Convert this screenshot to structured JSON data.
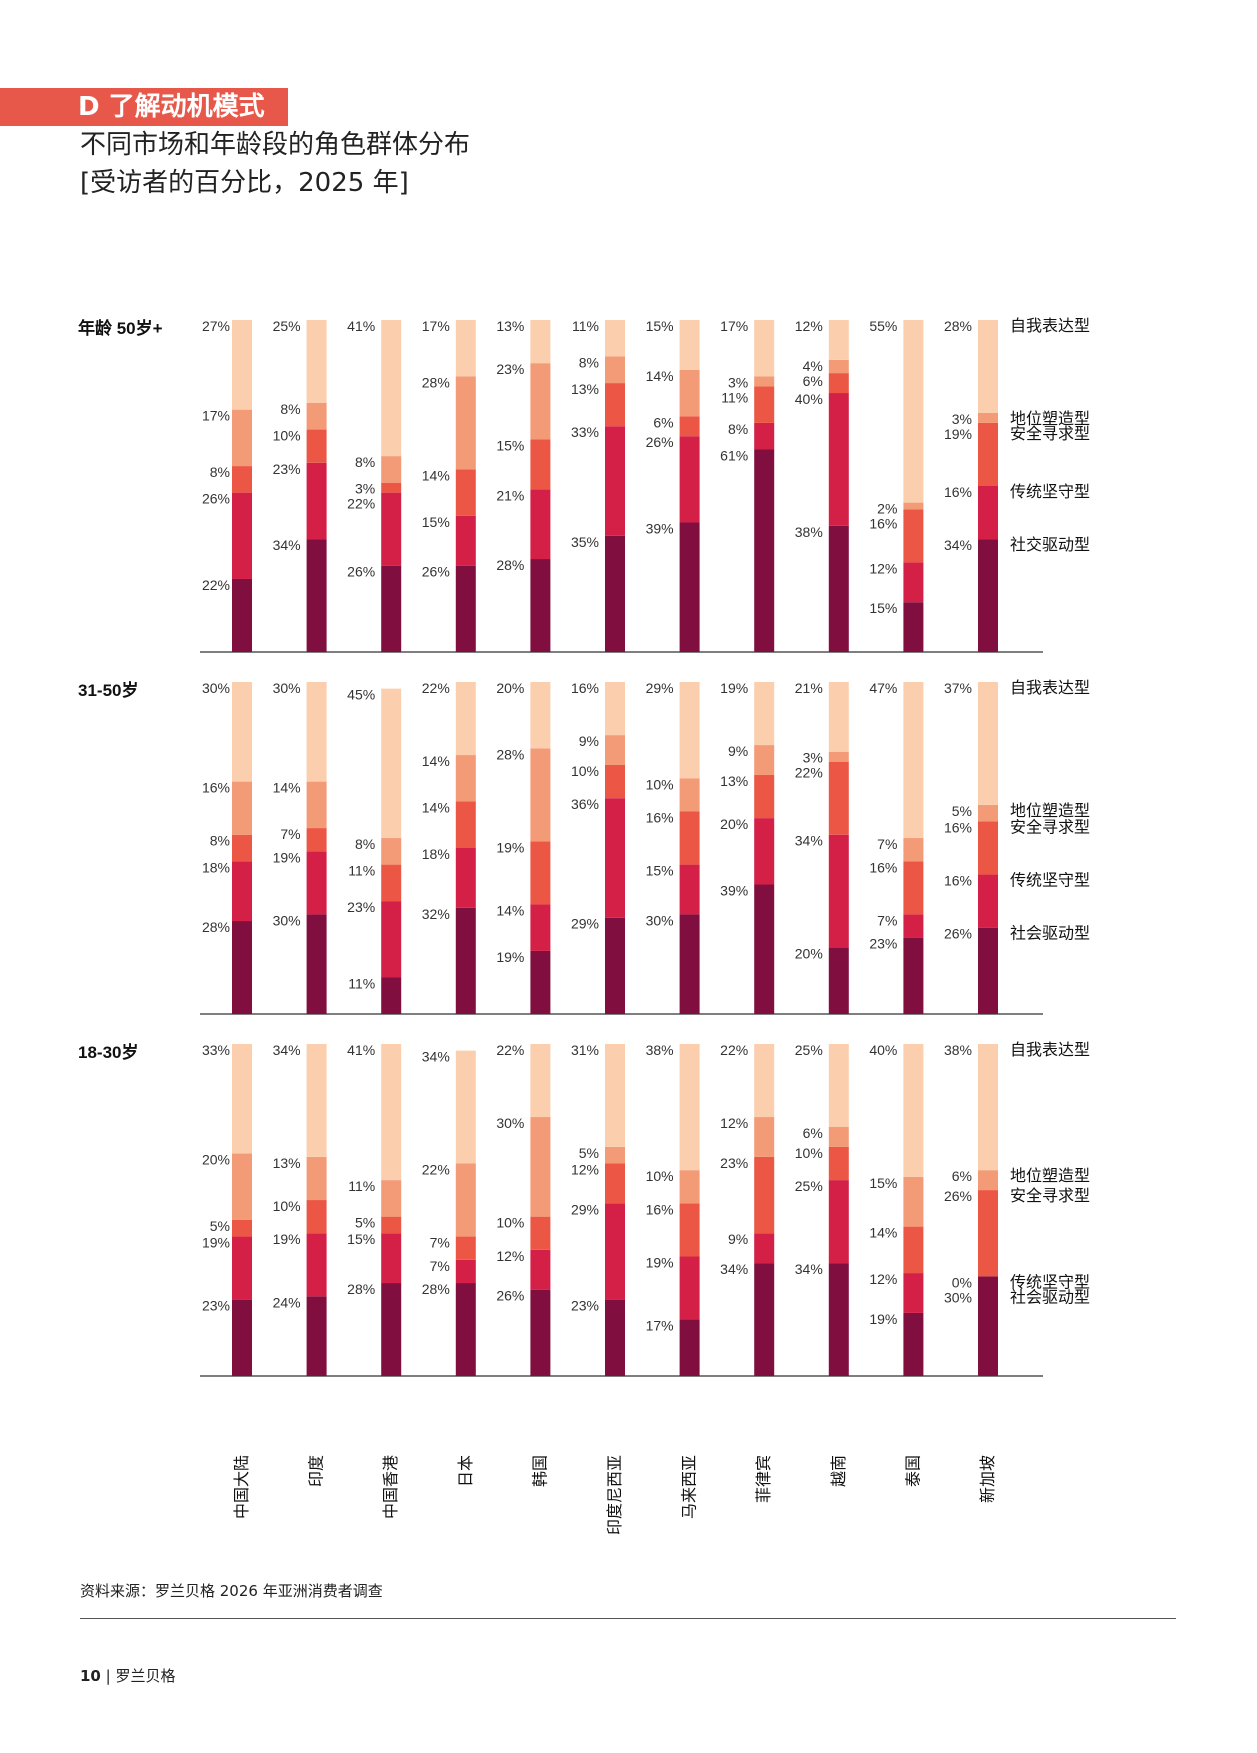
{
  "header": {
    "section_tag": "D 了解动机模式",
    "title": "不同市场和年龄段的角色群体分布",
    "subtitle": "[受访者的百分比，2025 年]"
  },
  "footer": {
    "source": "资料来源：罗兰贝格 2026 年亚洲消费者调查",
    "page_number": "10",
    "publisher": "罗兰贝格"
  },
  "colors": {
    "self_expression": "#fbcfae",
    "status_shaping": "#f39a77",
    "security_seeking": "#ec5745",
    "traditional": "#d41f47",
    "social_driven": "#800e3e"
  },
  "chart_data": {
    "type": "bar",
    "stacked": true,
    "unit": "%",
    "categories": [
      "中国大陆",
      "印度",
      "中国香港",
      "日本",
      "韩国",
      "印度尼西亚",
      "马来西亚",
      "菲律宾",
      "越南",
      "泰国",
      "新加坡"
    ],
    "series_order_bottom_to_top": [
      "社交驱动型",
      "传统坚守型",
      "安全寻求型",
      "地位塑造型",
      "自我表达型"
    ],
    "panels": [
      {
        "age_label": "年龄 50岁+",
        "legend": [
          "自我表达型",
          "地位塑造型",
          "安全寻求型",
          "传统坚守型",
          "社交驱动型"
        ],
        "stacks": [
          [
            22,
            26,
            8,
            17,
            27
          ],
          [
            34,
            23,
            10,
            8,
            25
          ],
          [
            26,
            22,
            3,
            8,
            41
          ],
          [
            26,
            15,
            14,
            28,
            17
          ],
          [
            28,
            21,
            15,
            23,
            13
          ],
          [
            35,
            33,
            13,
            8,
            11
          ],
          [
            39,
            26,
            6,
            14,
            15
          ],
          [
            61,
            8,
            11,
            3,
            17
          ],
          [
            38,
            40,
            6,
            4,
            12
          ],
          [
            15,
            12,
            16,
            2,
            55
          ],
          [
            34,
            16,
            19,
            3,
            28
          ]
        ]
      },
      {
        "age_label": "31-50岁",
        "legend": [
          "自我表达型",
          "地位塑造型",
          "安全寻求型",
          "传统坚守型",
          "社会驱动型"
        ],
        "stacks": [
          [
            28,
            18,
            8,
            16,
            30
          ],
          [
            30,
            19,
            7,
            14,
            30
          ],
          [
            11,
            23,
            11,
            8,
            45
          ],
          [
            32,
            18,
            14,
            14,
            22
          ],
          [
            19,
            14,
            19,
            28,
            20
          ],
          [
            29,
            36,
            10,
            9,
            16
          ],
          [
            30,
            15,
            16,
            10,
            29
          ],
          [
            39,
            20,
            13,
            9,
            19
          ],
          [
            20,
            34,
            22,
            3,
            21
          ],
          [
            23,
            7,
            16,
            7,
            47
          ],
          [
            26,
            16,
            16,
            5,
            37
          ]
        ]
      },
      {
        "age_label": "18-30岁",
        "legend": [
          "自我表达型",
          "地位塑造型",
          "安全寻求型",
          "传统坚守型",
          "社会驱动型"
        ],
        "stacks": [
          [
            23,
            19,
            5,
            20,
            33
          ],
          [
            24,
            19,
            10,
            13,
            34
          ],
          [
            28,
            15,
            5,
            11,
            41
          ],
          [
            28,
            7,
            7,
            22,
            34
          ],
          [
            26,
            12,
            10,
            30,
            22
          ],
          [
            23,
            29,
            12,
            5,
            31
          ],
          [
            17,
            19,
            16,
            10,
            38
          ],
          [
            34,
            9,
            23,
            12,
            22
          ],
          [
            34,
            25,
            10,
            6,
            25
          ],
          [
            19,
            12,
            14,
            15,
            40
          ],
          [
            30,
            0,
            26,
            6,
            38
          ]
        ]
      }
    ]
  }
}
